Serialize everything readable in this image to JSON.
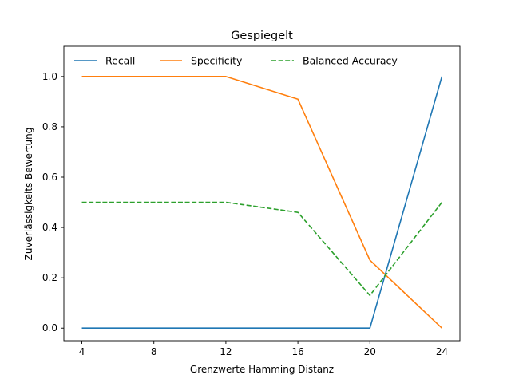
{
  "chart_data": {
    "type": "line",
    "title": "Gespiegelt",
    "xlabel": "Grenzwerte Hamming Distanz",
    "ylabel": "Zuverlässigkeits Bewertung",
    "x": [
      4,
      12,
      16,
      20,
      24
    ],
    "xticks": [
      "4",
      "8",
      "12",
      "16",
      "20",
      "24"
    ],
    "yticks": [
      "0.0",
      "0.2",
      "0.4",
      "0.6",
      "0.8",
      "1.0"
    ],
    "xlim": [
      3,
      25
    ],
    "ylim": [
      -0.05,
      1.12
    ],
    "grid": false,
    "legend_position": "top",
    "series": [
      {
        "name": "Recall",
        "values": [
          0.0,
          0.0,
          0.0,
          0.0,
          1.0
        ],
        "color": "#1f77b4",
        "style": "solid"
      },
      {
        "name": "Specificity",
        "values": [
          1.0,
          1.0,
          0.91,
          0.27,
          0.0
        ],
        "color": "#ff7f0e",
        "style": "solid"
      },
      {
        "name": "Balanced Accuracy",
        "values": [
          0.5,
          0.5,
          0.46,
          0.13,
          0.5
        ],
        "color": "#2ca02c",
        "style": "dashed"
      }
    ]
  }
}
